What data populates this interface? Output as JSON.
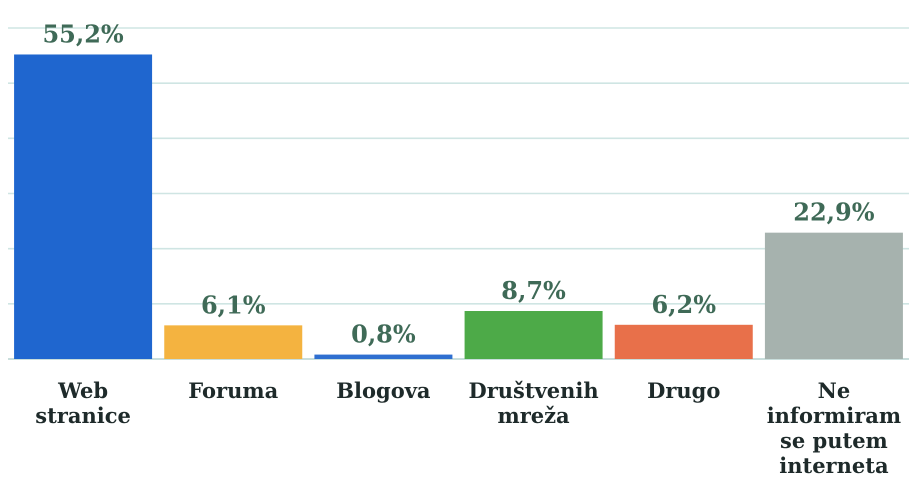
{
  "chart_data": {
    "type": "bar",
    "categories": [
      [
        "Web",
        "stranice"
      ],
      [
        "Foruma"
      ],
      [
        "Blogova"
      ],
      [
        "Društvenih",
        "mreža"
      ],
      [
        "Drugo"
      ],
      [
        "Ne",
        "informiram",
        "se putem",
        "interneta"
      ]
    ],
    "values": [
      55.2,
      6.1,
      0.8,
      8.7,
      6.2,
      22.9
    ],
    "value_labels": [
      "55,2%",
      "6,1%",
      "0,8%",
      "8,7%",
      "6,2%",
      "22,9%"
    ],
    "colors": [
      "#1f66cf",
      "#f4b340",
      "#2f6fd0",
      "#4daa48",
      "#e8704a",
      "#a6b2ae"
    ],
    "title": "",
    "xlabel": "",
    "ylabel": "",
    "ylim": [
      0,
      60
    ],
    "grid": true,
    "legend": "none"
  }
}
